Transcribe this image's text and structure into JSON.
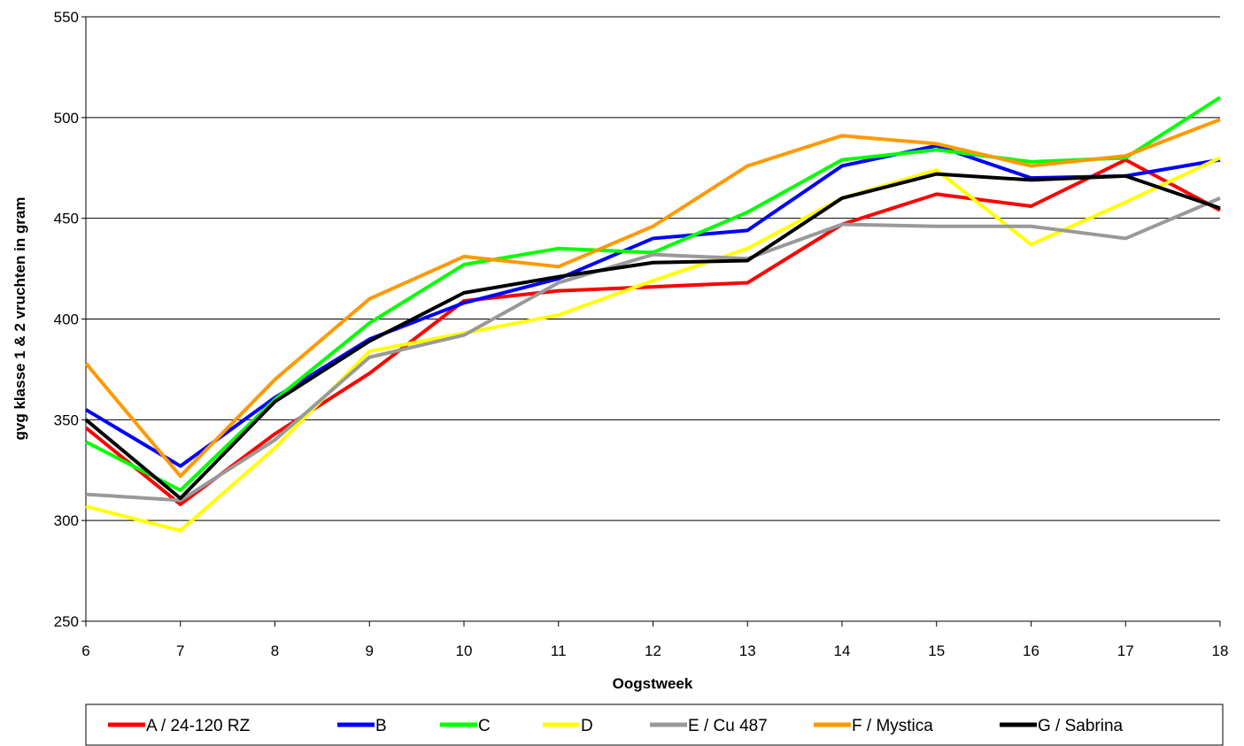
{
  "chart_data": {
    "type": "line",
    "title": "",
    "xlabel": "Oogstweek",
    "ylabel": "gvg klasse 1 & 2 vruchten in gram",
    "x": [
      6,
      7,
      8,
      9,
      10,
      11,
      12,
      13,
      14,
      15,
      16,
      17,
      18
    ],
    "xticks": [
      "6",
      "7",
      "8",
      "9",
      "10",
      "11",
      "12",
      "13",
      "14",
      "15",
      "16",
      "17",
      "18"
    ],
    "ylim": [
      250,
      550
    ],
    "yticks": [
      "250",
      "300",
      "350",
      "400",
      "450",
      "500",
      "550"
    ],
    "grid": "horizontal",
    "legend_position": "bottom",
    "series": [
      {
        "name": "A / 24-120 RZ",
        "color": "#ff0000",
        "values": [
          346,
          308,
          343,
          373,
          409,
          414,
          416,
          418,
          447,
          462,
          456,
          479,
          454
        ]
      },
      {
        "name": "B",
        "color": "#0000ff",
        "values": [
          355,
          327,
          361,
          390,
          408,
          420,
          440,
          444,
          476,
          486,
          470,
          471,
          479
        ]
      },
      {
        "name": "C",
        "color": "#00ff00",
        "values": [
          339,
          315,
          360,
          398,
          427,
          435,
          433,
          453,
          479,
          484,
          478,
          480,
          510
        ]
      },
      {
        "name": "D",
        "color": "#ffff00",
        "values": [
          307,
          295,
          336,
          384,
          393,
          402,
          419,
          435,
          460,
          474,
          437,
          458,
          480
        ]
      },
      {
        "name": "E / Cu 487",
        "color": "#999999",
        "values": [
          313,
          310,
          340,
          381,
          392,
          418,
          432,
          430,
          447,
          446,
          446,
          440,
          460
        ]
      },
      {
        "name": "F / Mystica",
        "color": "#ff9900",
        "values": [
          378,
          322,
          370,
          410,
          431,
          426,
          446,
          476,
          491,
          487,
          476,
          481,
          499
        ]
      },
      {
        "name": "G / Sabrina",
        "color": "#000000",
        "values": [
          350,
          311,
          359,
          389,
          413,
          421,
          428,
          429,
          460,
          472,
          469,
          471,
          455
        ]
      }
    ]
  }
}
